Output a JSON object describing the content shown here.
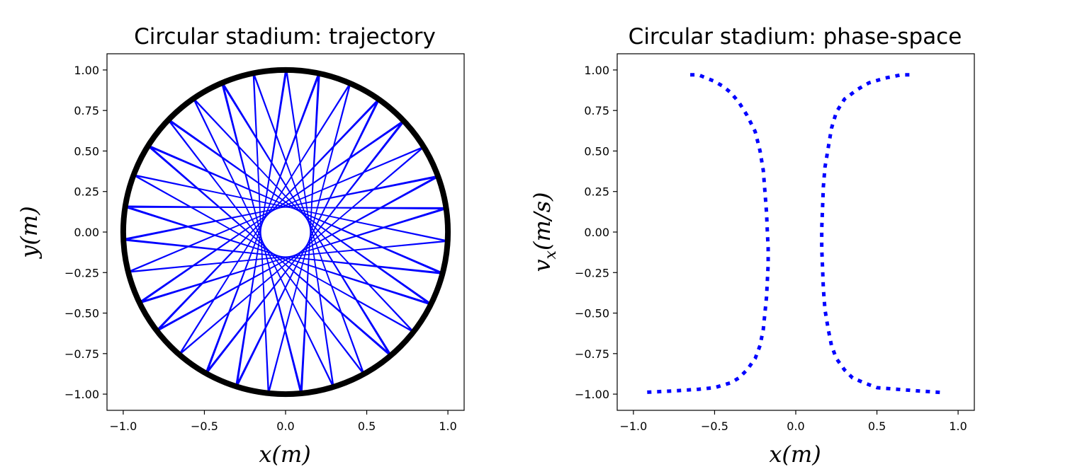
{
  "chart_data": [
    {
      "type": "line",
      "title": "Circular stadium: trajectory",
      "xlabel": "x(m)",
      "ylabel": "y(m)",
      "xlim": [
        -1.1,
        1.1
      ],
      "ylim": [
        -1.1,
        1.1
      ],
      "xticks": [
        "−1.0",
        "−0.5",
        "0.0",
        "0.5",
        "1.0"
      ],
      "xtick_values": [
        -1.0,
        -0.5,
        0.0,
        0.5,
        1.0
      ],
      "yticks": [
        "1.00",
        "0.75",
        "0.50",
        "0.25",
        "0.00",
        "−0.25",
        "−0.50",
        "−0.75",
        "−1.00"
      ],
      "ytick_values": [
        1.0,
        0.75,
        0.5,
        0.25,
        0.0,
        -0.25,
        -0.5,
        -0.75,
        -1.0
      ],
      "grid": false,
      "series": [
        {
          "color": "#0000ff",
          "style": "solid",
          "chords": {
            "radius": 1.0,
            "inner_clear_radius": 0.15,
            "angle_step_deg": 171.4,
            "bounces": 40
          }
        },
        {
          "color": "#000000",
          "style": "solid",
          "circle": {
            "cx": 0.0,
            "cy": 0.0,
            "r": 1.0
          }
        }
      ]
    },
    {
      "type": "line",
      "title": "Circular stadium: phase-space",
      "xlabel": "x(m)",
      "ylabel": "v_x(m/s)",
      "ylabel_main": "v",
      "ylabel_sub": "x",
      "ylabel_rest": "(m/s)",
      "xlim": [
        -1.1,
        1.1
      ],
      "ylim": [
        -1.1,
        1.1
      ],
      "xticks": [
        "−1.0",
        "−0.5",
        "0.0",
        "0.5",
        "1.0"
      ],
      "xtick_values": [
        -1.0,
        -0.5,
        0.0,
        0.5,
        1.0
      ],
      "yticks": [
        "1.00",
        "0.75",
        "0.50",
        "0.25",
        "0.00",
        "−0.25",
        "−0.50",
        "−0.75",
        "−1.00"
      ],
      "ytick_values": [
        1.0,
        0.75,
        0.5,
        0.25,
        0.0,
        -0.25,
        -0.5,
        -0.75,
        -1.0
      ],
      "grid": false,
      "series": [
        {
          "color": "#0000ff",
          "style": "dotted",
          "x": [
            -0.65,
            -0.6,
            -0.55,
            -0.5,
            -0.45,
            -0.4,
            -0.35,
            -0.3,
            -0.25,
            -0.22,
            -0.2,
            -0.19,
            -0.18,
            -0.175,
            -0.17,
            -0.17,
            -0.175,
            -0.18,
            -0.19,
            -0.2,
            -0.22,
            -0.25,
            -0.3,
            -0.35,
            -0.4,
            -0.5,
            -0.6,
            -0.75,
            -0.95
          ],
          "y": [
            0.97,
            0.97,
            0.95,
            0.93,
            0.9,
            0.86,
            0.8,
            0.72,
            0.62,
            0.5,
            0.38,
            0.25,
            0.12,
            0.0,
            -0.1,
            -0.2,
            -0.3,
            -0.4,
            -0.5,
            -0.6,
            -0.7,
            -0.78,
            -0.85,
            -0.9,
            -0.93,
            -0.96,
            -0.97,
            -0.98,
            -0.99
          ]
        },
        {
          "color": "#0000ff",
          "style": "dotted",
          "x": [
            0.7,
            0.65,
            0.55,
            0.45,
            0.38,
            0.3,
            0.25,
            0.22,
            0.2,
            0.18,
            0.17,
            0.165,
            0.16,
            0.16,
            0.165,
            0.17,
            0.18,
            0.2,
            0.22,
            0.25,
            0.3,
            0.35,
            0.42,
            0.5,
            0.75,
            0.9
          ],
          "y": [
            0.97,
            0.97,
            0.95,
            0.92,
            0.88,
            0.82,
            0.74,
            0.64,
            0.52,
            0.4,
            0.28,
            0.15,
            0.02,
            -0.1,
            -0.22,
            -0.35,
            -0.48,
            -0.6,
            -0.7,
            -0.78,
            -0.85,
            -0.9,
            -0.93,
            -0.96,
            -0.98,
            -0.99
          ]
        }
      ]
    }
  ]
}
